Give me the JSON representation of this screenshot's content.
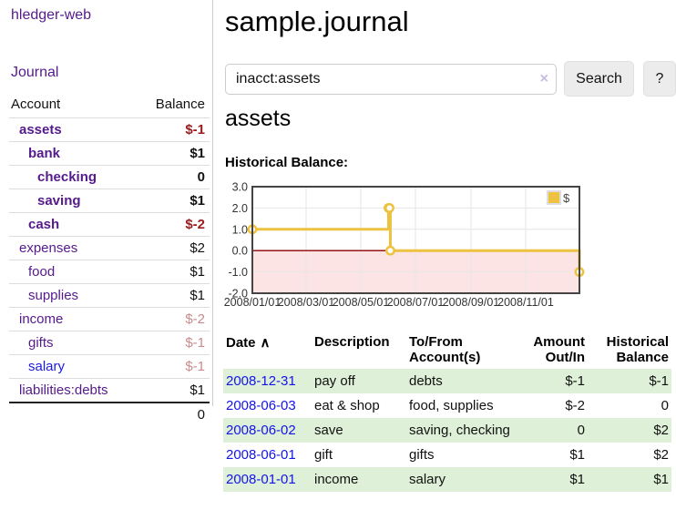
{
  "app": {
    "brand": "hledger-web",
    "nav_journal": "Journal"
  },
  "sidebar": {
    "header": {
      "account": "Account",
      "balance": "Balance"
    },
    "accounts": [
      {
        "name": "assets",
        "balance": "$-1"
      },
      {
        "name": "bank",
        "balance": "$1"
      },
      {
        "name": "checking",
        "balance": "0"
      },
      {
        "name": "saving",
        "balance": "$1"
      },
      {
        "name": "cash",
        "balance": "$-2"
      },
      {
        "name": "expenses",
        "balance": "$2"
      },
      {
        "name": "food",
        "balance": "$1"
      },
      {
        "name": "supplies",
        "balance": "$1"
      },
      {
        "name": "income",
        "balance": "$-2"
      },
      {
        "name": "gifts",
        "balance": "$-1"
      },
      {
        "name": "salary",
        "balance": "$-1"
      },
      {
        "name": "liabilities:debts",
        "balance": "$1"
      }
    ],
    "total": "0"
  },
  "header": {
    "title": "sample.journal"
  },
  "search": {
    "value": "inacct:assets",
    "clear_icon": "×",
    "button": "Search",
    "help_button": "?"
  },
  "register": {
    "heading": "assets",
    "chart_title": "Historical Balance:"
  },
  "chart_data": {
    "type": "line",
    "step": true,
    "title": "Historical Balance",
    "series": [
      {
        "name": "$",
        "color": "#EDC240",
        "points": [
          [
            "2008-01-01",
            1
          ],
          [
            "2008-06-01",
            2
          ],
          [
            "2008-06-02",
            2
          ],
          [
            "2008-06-03",
            0
          ],
          [
            "2008-12-31",
            -1
          ]
        ]
      }
    ],
    "x_ticks": [
      "2008/01/01",
      "2008/03/01",
      "2008/05/01",
      "2008/07/01",
      "2008/09/01",
      "2008/11/01"
    ],
    "y_ticks": [
      3.0,
      2.0,
      1.0,
      0.0,
      -1.0,
      -2.0
    ],
    "ylim": [
      -2,
      3
    ],
    "xlim": [
      "2008-01-01",
      "2008-12-31"
    ],
    "grid": true,
    "negative_region_fill": "#fce4e4",
    "zero_line_color": "#8b0000",
    "border_color": "#444444",
    "legend": {
      "label": "$",
      "position": "top-right"
    }
  },
  "table": {
    "headers": {
      "date": "Date",
      "sort_icon": "∧",
      "description": "Description",
      "account": "To/From Account(s)",
      "amount": "Amount Out/In",
      "balance": "Historical Balance"
    },
    "rows": [
      {
        "date": "2008-12-31",
        "description": "pay off",
        "account": "debts",
        "amount": "$-1",
        "balance": "$-1"
      },
      {
        "date": "2008-06-03",
        "description": "eat & shop",
        "account": "food, supplies",
        "amount": "$-2",
        "balance": "0"
      },
      {
        "date": "2008-06-02",
        "description": "save",
        "account": "saving, checking",
        "amount": "0",
        "balance": "$2"
      },
      {
        "date": "2008-06-01",
        "description": "gift",
        "account": "gifts",
        "amount": "$1",
        "balance": "$2"
      },
      {
        "date": "2008-01-01",
        "description": "income",
        "account": "salary",
        "amount": "$1",
        "balance": "$1"
      }
    ]
  }
}
